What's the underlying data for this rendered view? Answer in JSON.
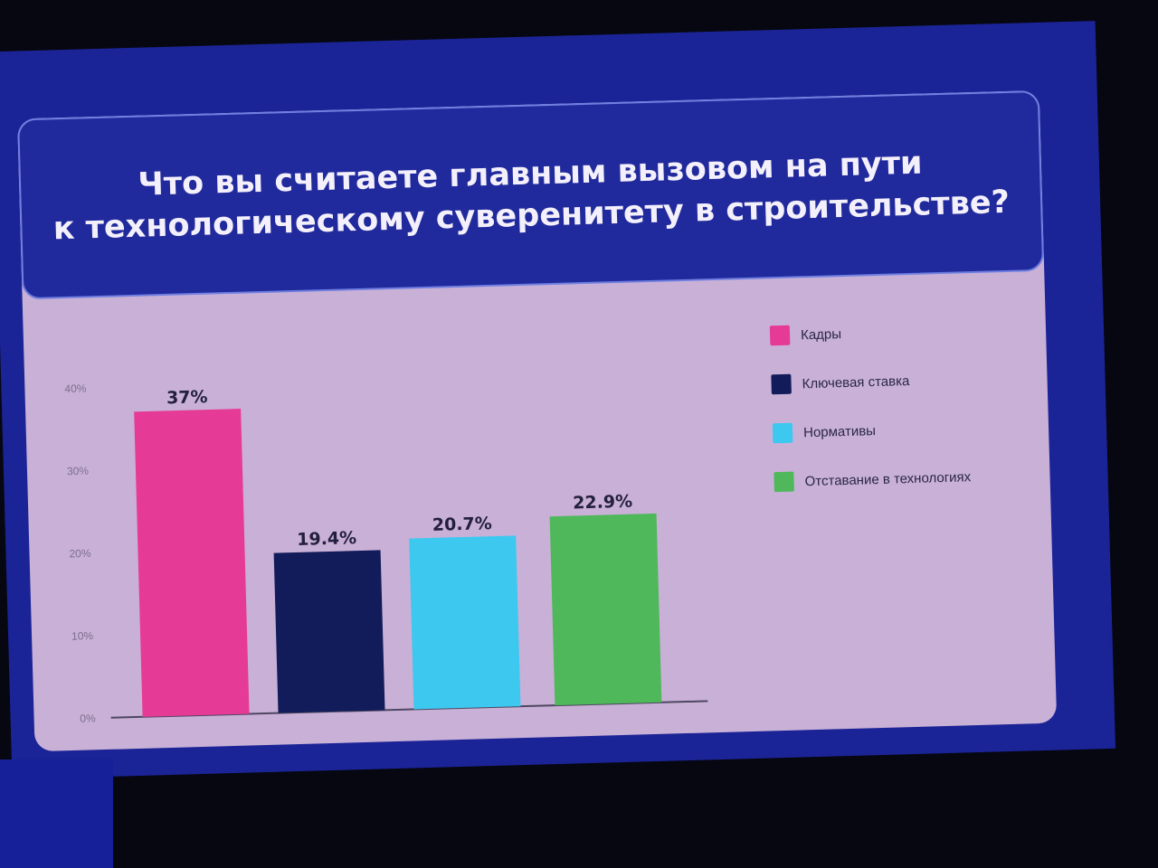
{
  "slide": {
    "title_line1": "Что вы считаете главным вызовом на пути",
    "title_line2": "к технологическому суверенитету в строительстве?"
  },
  "colors": {
    "screen": "#1b2497",
    "card": "#c9b0d6",
    "banner": "#212a9c"
  },
  "chart_data": {
    "type": "bar",
    "title": "Что вы считаете главным вызовом на пути к технологическому суверенитету в строительстве?",
    "ylim": [
      0,
      40
    ],
    "yticks": [
      0,
      10,
      20,
      30,
      40
    ],
    "ytick_labels": [
      "0%",
      "10%",
      "20%",
      "30%",
      "40%"
    ],
    "grid": false,
    "legend_position": "right",
    "series": [
      {
        "name": "Кадры",
        "value": 37,
        "label": "37%",
        "color": "#e63a97"
      },
      {
        "name": "Ключевая ставка",
        "value": 19.4,
        "label": "19.4%",
        "color": "#121c5a"
      },
      {
        "name": "Нормативы",
        "value": 20.7,
        "label": "20.7%",
        "color": "#3dc8f0"
      },
      {
        "name": "Отставание в технологиях",
        "value": 22.9,
        "label": "22.9%",
        "color": "#4fb85b"
      }
    ]
  }
}
